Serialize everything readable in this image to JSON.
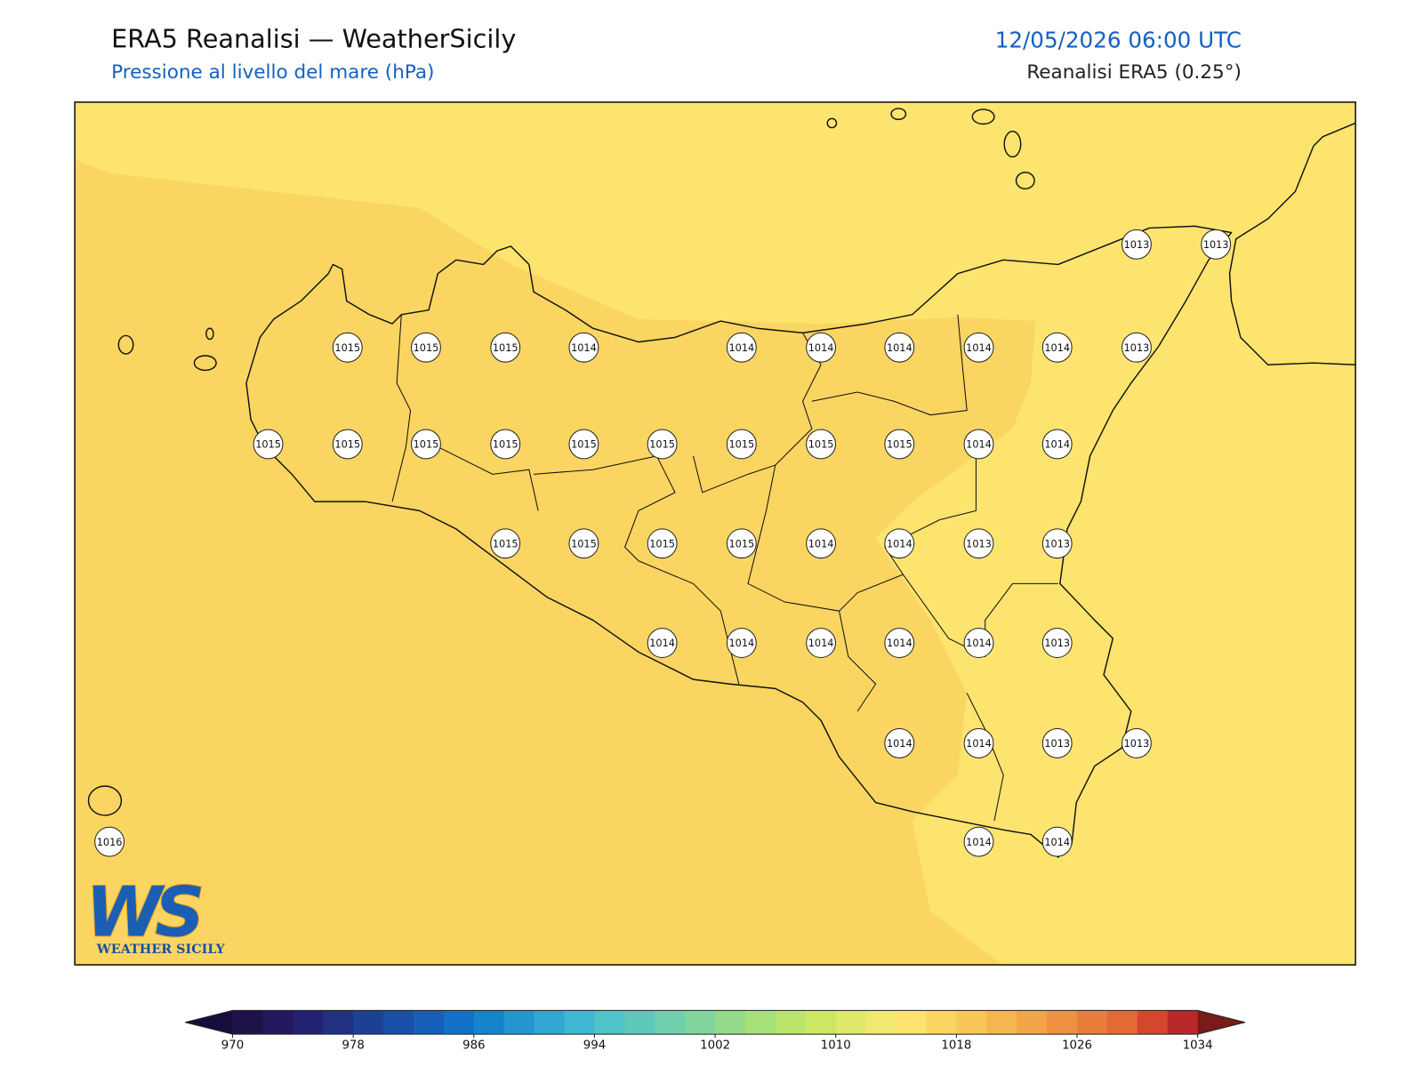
{
  "header": {
    "title": "ERA5 Reanalisi — WeatherSicily",
    "subtitle": "Pressione al livello del mare (hPa)",
    "datetime": "12/05/2026 06:00 UTC",
    "source": "Reanalisi ERA5 (0.25°)"
  },
  "map": {
    "stations": [
      1013,
      1013,
      1015,
      1015,
      1015,
      1014,
      1014,
      1014,
      1014,
      1014,
      1014,
      1013,
      1015,
      1015,
      1015,
      1015,
      1015,
      1015,
      1015,
      1015,
      1015,
      1014,
      1014,
      1015,
      1015,
      1015,
      1015,
      1014,
      1014,
      1013,
      1013,
      1014,
      1014,
      1014,
      1014,
      1014,
      1013,
      1014,
      1014,
      1013,
      1013,
      1016,
      1014,
      1014
    ]
  },
  "colorbar": {
    "lim": [
      970,
      1034
    ],
    "ticks": [
      970,
      978,
      986,
      994,
      1002,
      1010,
      1018,
      1026,
      1034
    ],
    "colors": [
      "#1e1249",
      "#21185d",
      "#232271",
      "#213083",
      "#1e3f96",
      "#1a4ea8",
      "#155fb9",
      "#1071c6",
      "#1584cd",
      "#2396d2",
      "#31a8d4",
      "#3fb8d2",
      "#4fc3c8",
      "#5ec9bb",
      "#6ed0ad",
      "#80d69c",
      "#93db8a",
      "#a6e078",
      "#bae46b",
      "#cde765",
      "#dfe96b",
      "#f0e870",
      "#fde46f",
      "#fbd562",
      "#f9c758",
      "#f6b64f",
      "#f2a447",
      "#ee9140",
      "#e97d3a",
      "#e36a34",
      "#d5472d",
      "#b9282a"
    ],
    "under_color": "#170d3d",
    "over_color": "#7a1a1a"
  },
  "logo": {
    "mark": "WS",
    "name": "WEATHER SICILY"
  }
}
